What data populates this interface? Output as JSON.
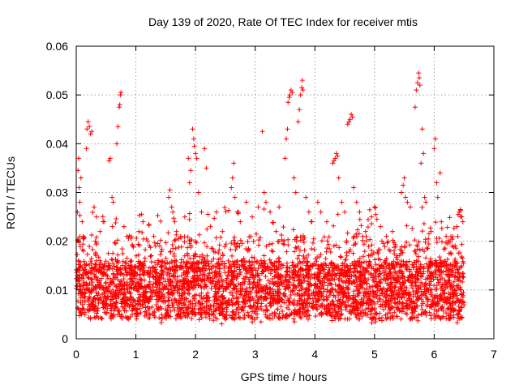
{
  "chart_data": {
    "type": "scatter",
    "title": "Day 139 of 2020, Rate Of TEC Index for receiver mtis",
    "xlabel": "GPS time / hours",
    "ylabel": "ROTI / TECUs",
    "xlim": [
      0,
      7
    ],
    "ylim": [
      0,
      0.06
    ],
    "x_ticks": [
      0,
      1,
      2,
      3,
      4,
      5,
      6,
      7
    ],
    "y_ticks": [
      0,
      0.01,
      0.02,
      0.03,
      0.04,
      0.05,
      0.06
    ],
    "x_tick_labels": [
      "0",
      "1",
      "2",
      "3",
      "4",
      "5",
      "6",
      "7"
    ],
    "y_tick_labels": [
      "0",
      "0.01",
      "0.02",
      "0.03",
      "0.04",
      "0.05",
      "0.06"
    ],
    "grid": true,
    "marker": "+",
    "marker_color": "#ff0000",
    "data_x_range": [
      0,
      6.5
    ],
    "series": [
      {
        "name": "ROTI",
        "points": [
          [
            0.02,
            0.026
          ],
          [
            0.03,
            0.0345
          ],
          [
            0.04,
            0.037
          ],
          [
            0.05,
            0.031
          ],
          [
            0.06,
            0.028
          ],
          [
            0.08,
            0.033
          ],
          [
            0.1,
            0.024
          ],
          [
            0.12,
            0.021
          ],
          [
            0.18,
            0.043
          ],
          [
            0.2,
            0.0445
          ],
          [
            0.22,
            0.0435
          ],
          [
            0.24,
            0.042
          ],
          [
            0.26,
            0.0425
          ],
          [
            0.17,
            0.039
          ],
          [
            0.3,
            0.027
          ],
          [
            0.34,
            0.025
          ],
          [
            0.4,
            0.022
          ],
          [
            0.45,
            0.024
          ],
          [
            0.55,
            0.0365
          ],
          [
            0.57,
            0.037
          ],
          [
            0.6,
            0.029
          ],
          [
            0.62,
            0.028
          ],
          [
            0.7,
            0.0435
          ],
          [
            0.72,
            0.0475
          ],
          [
            0.73,
            0.048
          ],
          [
            0.74,
            0.05
          ],
          [
            0.75,
            0.0505
          ],
          [
            0.68,
            0.04
          ],
          [
            0.8,
            0.023
          ],
          [
            0.85,
            0.021
          ],
          [
            0.95,
            0.019
          ],
          [
            1.05,
            0.022
          ],
          [
            1.12,
            0.024
          ],
          [
            1.2,
            0.02
          ],
          [
            1.3,
            0.021
          ],
          [
            1.4,
            0.019
          ],
          [
            1.55,
            0.029
          ],
          [
            1.57,
            0.0305
          ],
          [
            1.6,
            0.027
          ],
          [
            1.62,
            0.026
          ],
          [
            1.65,
            0.024
          ],
          [
            1.68,
            0.022
          ],
          [
            1.75,
            0.021
          ],
          [
            1.82,
            0.025
          ],
          [
            1.88,
            0.037
          ],
          [
            1.9,
            0.032
          ],
          [
            1.92,
            0.0345
          ],
          [
            1.95,
            0.043
          ],
          [
            1.97,
            0.041
          ],
          [
            1.98,
            0.0395
          ],
          [
            2.0,
            0.038
          ],
          [
            2.02,
            0.037
          ],
          [
            2.05,
            0.03
          ],
          [
            2.1,
            0.026
          ],
          [
            2.15,
            0.039
          ],
          [
            2.18,
            0.035
          ],
          [
            2.25,
            0.023
          ],
          [
            2.35,
            0.026
          ],
          [
            2.45,
            0.022
          ],
          [
            2.6,
            0.031
          ],
          [
            2.62,
            0.033
          ],
          [
            2.64,
            0.036
          ],
          [
            2.66,
            0.029
          ],
          [
            2.7,
            0.026
          ],
          [
            2.75,
            0.024
          ],
          [
            2.85,
            0.028
          ],
          [
            2.95,
            0.025
          ],
          [
            3.05,
            0.027
          ],
          [
            3.12,
            0.0425
          ],
          [
            3.15,
            0.03
          ],
          [
            3.18,
            0.028
          ],
          [
            3.25,
            0.026
          ],
          [
            3.35,
            0.022
          ],
          [
            3.4,
            0.027
          ],
          [
            3.5,
            0.037
          ],
          [
            3.52,
            0.041
          ],
          [
            3.54,
            0.043
          ],
          [
            3.55,
            0.0485
          ],
          [
            3.57,
            0.0495
          ],
          [
            3.58,
            0.05
          ],
          [
            3.6,
            0.051
          ],
          [
            3.62,
            0.0505
          ],
          [
            3.65,
            0.033
          ],
          [
            3.68,
            0.03
          ],
          [
            3.72,
            0.0445
          ],
          [
            3.74,
            0.047
          ],
          [
            3.76,
            0.05
          ],
          [
            3.78,
            0.0515
          ],
          [
            3.79,
            0.053
          ],
          [
            3.8,
            0.051
          ],
          [
            3.85,
            0.029
          ],
          [
            3.9,
            0.026
          ],
          [
            3.95,
            0.024
          ],
          [
            4.05,
            0.028
          ],
          [
            4.1,
            0.026
          ],
          [
            4.2,
            0.024
          ],
          [
            4.3,
            0.036
          ],
          [
            4.32,
            0.0365
          ],
          [
            4.34,
            0.037
          ],
          [
            4.36,
            0.038
          ],
          [
            4.38,
            0.0375
          ],
          [
            4.4,
            0.033
          ],
          [
            4.45,
            0.028
          ],
          [
            4.5,
            0.026
          ],
          [
            4.55,
            0.044
          ],
          [
            4.57,
            0.0445
          ],
          [
            4.59,
            0.045
          ],
          [
            4.61,
            0.046
          ],
          [
            4.63,
            0.0455
          ],
          [
            4.65,
            0.031
          ],
          [
            4.7,
            0.028
          ],
          [
            4.75,
            0.026
          ],
          [
            4.85,
            0.022
          ],
          [
            4.95,
            0.025
          ],
          [
            5.0,
            0.027
          ],
          [
            5.02,
            0.0255
          ],
          [
            5.04,
            0.0245
          ],
          [
            5.1,
            0.023
          ],
          [
            5.2,
            0.021
          ],
          [
            5.3,
            0.022
          ],
          [
            5.45,
            0.03
          ],
          [
            5.48,
            0.0315
          ],
          [
            5.5,
            0.033
          ],
          [
            5.52,
            0.029
          ],
          [
            5.55,
            0.028
          ],
          [
            5.6,
            0.027
          ],
          [
            5.68,
            0.0475
          ],
          [
            5.7,
            0.051
          ],
          [
            5.72,
            0.0525
          ],
          [
            5.74,
            0.0545
          ],
          [
            5.75,
            0.0535
          ],
          [
            5.76,
            0.052
          ],
          [
            5.78,
            0.036
          ],
          [
            5.8,
            0.043
          ],
          [
            5.82,
            0.038
          ],
          [
            5.84,
            0.029
          ],
          [
            5.86,
            0.028
          ],
          [
            5.95,
            0.022
          ],
          [
            6.0,
            0.039
          ],
          [
            6.02,
            0.041
          ],
          [
            6.04,
            0.032
          ],
          [
            6.06,
            0.029
          ],
          [
            6.1,
            0.034
          ],
          [
            6.12,
            0.024
          ],
          [
            6.2,
            0.021
          ],
          [
            6.3,
            0.019
          ],
          [
            6.38,
            0.023
          ],
          [
            6.4,
            0.0255
          ],
          [
            6.42,
            0.026
          ],
          [
            6.44,
            0.0265
          ],
          [
            6.46,
            0.025
          ],
          [
            6.48,
            0.024
          ]
        ]
      }
    ]
  }
}
